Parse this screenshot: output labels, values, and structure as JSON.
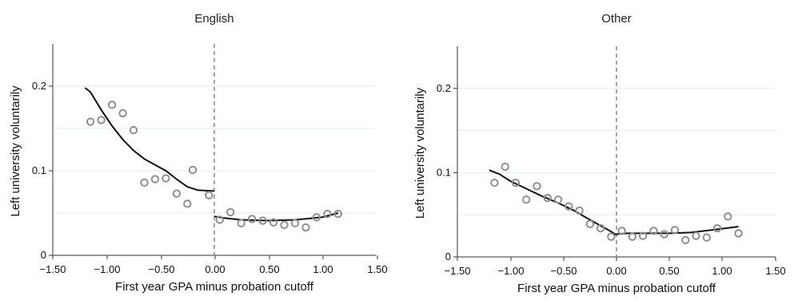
{
  "chart_data": [
    {
      "type": "scatter",
      "title": "English",
      "xlabel": "First year GPA minus probation cutoff",
      "ylabel": "Left university voluntarily",
      "xlim": [
        -1.5,
        1.5
      ],
      "ylim": [
        0,
        0.25
      ],
      "xticks": [
        "−1.50",
        "−1.00",
        "−0.50",
        "0.00",
        "0.50",
        "1.00",
        "1.50"
      ],
      "yticks": [
        "0",
        "0.1",
        "0.2"
      ],
      "gridlines_y": [
        0.05,
        0.1,
        0.15,
        0.2
      ],
      "cutoff": 0,
      "points": {
        "x": [
          -1.15,
          -1.05,
          -0.95,
          -0.85,
          -0.75,
          -0.65,
          -0.55,
          -0.45,
          -0.35,
          -0.25,
          -0.2,
          -0.05,
          0.05,
          0.15,
          0.25,
          0.35,
          0.45,
          0.55,
          0.65,
          0.75,
          0.85,
          0.95,
          1.05,
          1.15
        ],
        "y": [
          0.158,
          0.16,
          0.178,
          0.168,
          0.148,
          0.086,
          0.09,
          0.091,
          0.073,
          0.061,
          0.101,
          0.071,
          0.042,
          0.051,
          0.038,
          0.043,
          0.041,
          0.039,
          0.036,
          0.038,
          0.033,
          0.045,
          0.049,
          0.049
        ]
      },
      "fit_left": {
        "x": [
          -1.2,
          -1.15,
          -1.05,
          -0.95,
          -0.85,
          -0.75,
          -0.65,
          -0.55,
          -0.45,
          -0.35,
          -0.25,
          -0.15,
          0.0
        ],
        "y": [
          0.198,
          0.193,
          0.172,
          0.153,
          0.137,
          0.124,
          0.114,
          0.107,
          0.1,
          0.09,
          0.081,
          0.077,
          0.076
        ]
      },
      "fit_right": {
        "x": [
          0.0,
          0.1,
          0.25,
          0.5,
          0.75,
          1.0,
          1.15
        ],
        "y": [
          0.046,
          0.044,
          0.042,
          0.041,
          0.042,
          0.045,
          0.05
        ]
      }
    },
    {
      "type": "scatter",
      "title": "Other",
      "xlabel": "First year GPA minus probation cutoff",
      "ylabel": "Left university voluntarily",
      "xlim": [
        -1.5,
        1.5
      ],
      "ylim": [
        0,
        0.25
      ],
      "xticks": [
        "−1.50",
        "−1.00",
        "−0.50",
        "0.00",
        "0.50",
        "1.00",
        "1.50"
      ],
      "yticks": [
        "0",
        "0.1",
        "0.2"
      ],
      "gridlines_y": [
        0.05,
        0.1,
        0.15,
        0.2
      ],
      "cutoff": 0,
      "points": {
        "x": [
          -1.15,
          -1.05,
          -0.95,
          -0.85,
          -0.75,
          -0.65,
          -0.55,
          -0.45,
          -0.35,
          -0.25,
          -0.15,
          -0.05,
          0.05,
          0.15,
          0.25,
          0.35,
          0.45,
          0.55,
          0.65,
          0.75,
          0.85,
          0.95,
          1.05,
          1.15
        ],
        "y": [
          0.088,
          0.107,
          0.088,
          0.068,
          0.084,
          0.07,
          0.068,
          0.06,
          0.055,
          0.039,
          0.034,
          0.024,
          0.031,
          0.024,
          0.025,
          0.031,
          0.027,
          0.032,
          0.02,
          0.025,
          0.023,
          0.034,
          0.048,
          0.028
        ]
      },
      "fit_left": {
        "x": [
          -1.2,
          -1.1,
          -1.0,
          -0.85,
          -0.7,
          -0.55,
          -0.4,
          -0.25,
          -0.15,
          -0.05,
          0.0
        ],
        "y": [
          0.103,
          0.098,
          0.09,
          0.081,
          0.072,
          0.064,
          0.055,
          0.044,
          0.037,
          0.03,
          0.026
        ]
      },
      "fit_right": {
        "x": [
          0.0,
          0.1,
          0.3,
          0.5,
          0.7,
          0.9,
          1.15
        ],
        "y": [
          0.027,
          0.028,
          0.028,
          0.028,
          0.029,
          0.032,
          0.036
        ]
      }
    }
  ]
}
